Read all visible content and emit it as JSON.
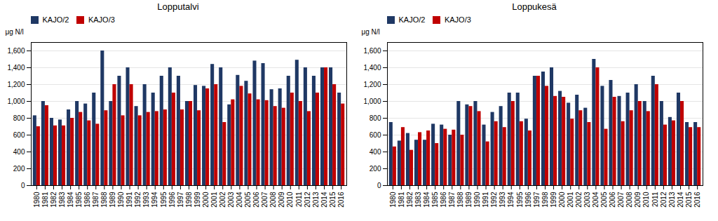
{
  "chart_data": [
    {
      "type": "bar",
      "title": "Lopputalvi",
      "ylabel": "μg N/l",
      "categories": [
        "1980",
        "1981",
        "1982",
        "1983",
        "1984",
        "1985",
        "1986",
        "1987",
        "1988",
        "1989",
        "1990",
        "1991",
        "1992",
        "1993",
        "1994",
        "1995",
        "1996",
        "1997",
        "1998",
        "1999",
        "2000",
        "2001",
        "2002",
        "2003",
        "2004",
        "2005",
        "2006",
        "2007",
        "2008",
        "2009",
        "2010",
        "2011",
        "2012",
        "2013",
        "2014",
        "2015",
        "2016"
      ],
      "series": [
        {
          "name": "KAJO/2",
          "color": "#1F3864",
          "values": [
            830,
            1000,
            800,
            780,
            900,
            1000,
            970,
            1100,
            1600,
            1000,
            1300,
            1400,
            940,
            1200,
            1100,
            1300,
            1400,
            1300,
            1000,
            1190,
            1180,
            1440,
            1400,
            960,
            1310,
            1240,
            1480,
            1450,
            1140,
            1150,
            1300,
            1490,
            1400,
            1300,
            1400,
            1400,
            1100
          ]
        },
        {
          "name": "KAJO/3",
          "color": "#C00000",
          "values": [
            700,
            950,
            710,
            710,
            800,
            870,
            770,
            730,
            890,
            1200,
            830,
            1200,
            830,
            870,
            880,
            900,
            1100,
            900,
            1000,
            890,
            1150,
            1200,
            750,
            1020,
            1180,
            1090,
            1020,
            1010,
            940,
            920,
            1100,
            1000,
            880,
            1100,
            1400,
            1200,
            970
          ]
        }
      ],
      "ylim": [
        0,
        1700
      ],
      "yticks": [
        0,
        200,
        400,
        600,
        800,
        1000,
        1200,
        1400,
        1600
      ],
      "grid": true,
      "legend": "upper left"
    },
    {
      "type": "bar",
      "title": "Loppukesä",
      "ylabel": "μg N/l",
      "categories": [
        "1980",
        "1981",
        "1982",
        "1983",
        "1984",
        "1985",
        "1986",
        "1987",
        "1988",
        "1989",
        "1990",
        "1991",
        "1992",
        "1993",
        "1994",
        "1995",
        "1996",
        "1997",
        "1998",
        "1999",
        "2000",
        "2001",
        "2002",
        "2003",
        "2004",
        "2005",
        "2006",
        "2007",
        "2008",
        "2009",
        "2010",
        "2011",
        "2012",
        "2013",
        "2014",
        "2015",
        "2016"
      ],
      "series": [
        {
          "name": "KAJO/2",
          "color": "#1F3864",
          "values": [
            750,
            530,
            620,
            540,
            540,
            730,
            720,
            600,
            1000,
            960,
            1000,
            720,
            870,
            940,
            1100,
            1100,
            790,
            1300,
            1350,
            1400,
            1120,
            980,
            1075,
            920,
            1500,
            1180,
            1250,
            1060,
            1100,
            1200,
            1000,
            1300,
            1000,
            810,
            1100,
            750,
            750
          ]
        },
        {
          "name": "KAJO/3",
          "color": "#C00000",
          "values": [
            460,
            690,
            420,
            630,
            650,
            500,
            670,
            660,
            600,
            940,
            880,
            520,
            760,
            690,
            1000,
            760,
            650,
            1300,
            1180,
            1060,
            1050,
            790,
            890,
            750,
            1400,
            670,
            1050,
            760,
            890,
            1000,
            880,
            1200,
            720,
            770,
            1000,
            690,
            690
          ]
        }
      ],
      "ylim": [
        0,
        1700
      ],
      "yticks": [
        0,
        200,
        400,
        600,
        800,
        1000,
        1200,
        1400,
        1600
      ],
      "grid": true,
      "legend": "upper left"
    }
  ]
}
